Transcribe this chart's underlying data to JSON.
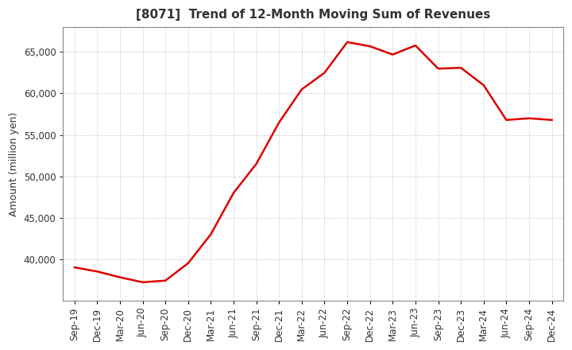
{
  "title": "[8071]  Trend of 12-Month Moving Sum of Revenues",
  "ylabel": "Amount (million yen)",
  "line_color": "#dd0000",
  "background_color": "#ffffff",
  "plot_bg_color": "#ffffff",
  "grid_color": "#aaaaaa",
  "x_labels": [
    "Sep-19",
    "Dec-19",
    "Mar-20",
    "Jun-20",
    "Sep-20",
    "Dec-20",
    "Mar-21",
    "Jun-21",
    "Sep-21",
    "Dec-21",
    "Mar-22",
    "Jun-22",
    "Sep-22",
    "Dec-22",
    "Mar-23",
    "Jun-23",
    "Sep-23",
    "Dec-23",
    "Mar-24",
    "Jun-24",
    "Sep-24",
    "Dec-24"
  ],
  "values": [
    39000,
    38500,
    37800,
    37200,
    37400,
    39500,
    43000,
    48000,
    51500,
    56500,
    60500,
    62500,
    66200,
    65700,
    64700,
    65800,
    63000,
    63100,
    61000,
    56800,
    57000,
    56800
  ],
  "ylim": [
    35000,
    68000
  ],
  "yticks": [
    40000,
    45000,
    50000,
    55000,
    60000,
    65000
  ],
  "title_fontsize": 11,
  "title_color": "#333333",
  "axis_label_fontsize": 9,
  "tick_fontsize": 8.5
}
